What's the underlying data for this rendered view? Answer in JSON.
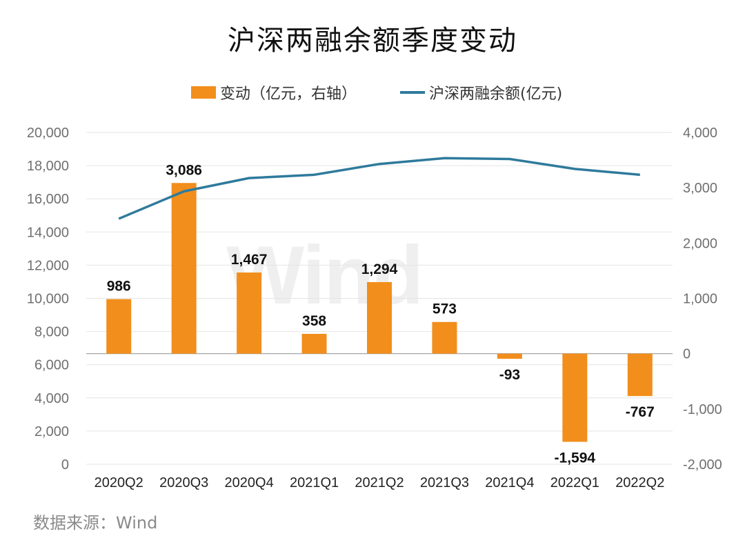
{
  "chart_data": {
    "type": "bar",
    "title": "沪深两融余额季度变动",
    "categories": [
      "2020Q2",
      "2020Q3",
      "2020Q4",
      "2021Q1",
      "2021Q2",
      "2021Q3",
      "2021Q4",
      "2022Q1",
      "2022Q2"
    ],
    "series": [
      {
        "name": "变动（亿元，右轴）",
        "type": "bar",
        "axis": "right",
        "values": [
          986,
          3086,
          1467,
          358,
          1294,
          573,
          -93,
          -1594,
          -767
        ],
        "labels": [
          "986",
          "3,086",
          "1,467",
          "358",
          "1,294",
          "573",
          "-93",
          "-1,594",
          "-767"
        ],
        "color": "#f28e1c"
      },
      {
        "name": "沪深两融余额(亿元)",
        "type": "line",
        "axis": "left",
        "values": [
          14800,
          16450,
          17250,
          17450,
          18100,
          18450,
          18400,
          17800,
          17450
        ],
        "color": "#2e7a9c"
      }
    ],
    "left_axis": {
      "ylim": [
        0,
        20000
      ],
      "ticks": [
        "20,000",
        "18,000",
        "16,000",
        "14,000",
        "12,000",
        "10,000",
        "8,000",
        "6,000",
        "4,000",
        "2,000",
        "0"
      ]
    },
    "right_axis": {
      "ylim": [
        -2000,
        4000
      ],
      "ticks": [
        "4,000",
        "3,000",
        "2,000",
        "1,000",
        "0",
        "-1,000",
        "-2,000"
      ]
    },
    "grid": true,
    "legend_position": "top"
  },
  "source_text": "数据来源：Wind",
  "watermark_text": "Wind"
}
